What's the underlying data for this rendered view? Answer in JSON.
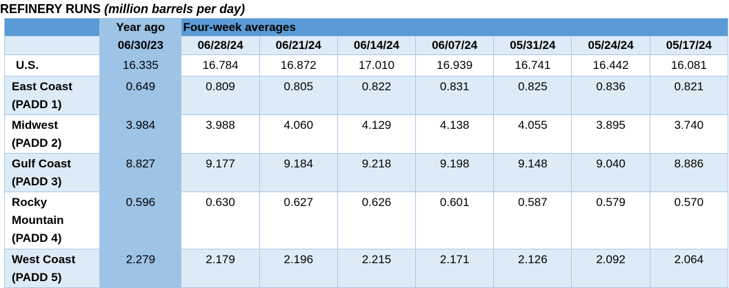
{
  "title": {
    "main": "REFINERY RUNS",
    "sub": "(million barrels per day)"
  },
  "header": {
    "year_ago": "Year ago",
    "four_week": "Four-week averages",
    "dates": [
      "06/30/23",
      "06/28/24",
      "06/21/24",
      "06/14/24",
      "06/07/24",
      "05/31/24",
      "05/24/24",
      "05/17/24"
    ]
  },
  "rows": [
    {
      "label": [
        "U.S."
      ],
      "values": [
        "16.335",
        "16.784",
        "16.872",
        "17.010",
        "16.939",
        "16.741",
        "16.442",
        "16.081"
      ]
    },
    {
      "label": [
        "East Coast",
        "(PADD 1)"
      ],
      "values": [
        "0.649",
        "0.809",
        "0.805",
        "0.822",
        "0.831",
        "0.825",
        "0.836",
        "0.821"
      ]
    },
    {
      "label": [
        "Midwest",
        "(PADD 2)"
      ],
      "values": [
        "3.984",
        "3.988",
        "4.060",
        "4.129",
        "4.138",
        "4.055",
        "3.895",
        "3.740"
      ]
    },
    {
      "label": [
        "Gulf Coast",
        "(PADD 3)"
      ],
      "values": [
        "8.827",
        "9.177",
        "9.184",
        "9.218",
        "9.198",
        "9.148",
        "9.040",
        "8.886"
      ]
    },
    {
      "label": [
        "Rocky",
        "Mountain",
        "(PADD 4)"
      ],
      "values": [
        "0.596",
        "0.630",
        "0.627",
        "0.626",
        "0.601",
        "0.587",
        "0.579",
        "0.570"
      ]
    },
    {
      "label": [
        "West Coast",
        "(PADD 5)"
      ],
      "values": [
        "2.279",
        "2.179",
        "2.196",
        "2.215",
        "2.171",
        "2.126",
        "2.092",
        "2.064"
      ]
    }
  ],
  "colors": {
    "header_blue": "#5b9bd5",
    "year_ago_blue": "#9dc3e6",
    "band_light": "#ddebf7",
    "grid": "#a9c6e6"
  }
}
